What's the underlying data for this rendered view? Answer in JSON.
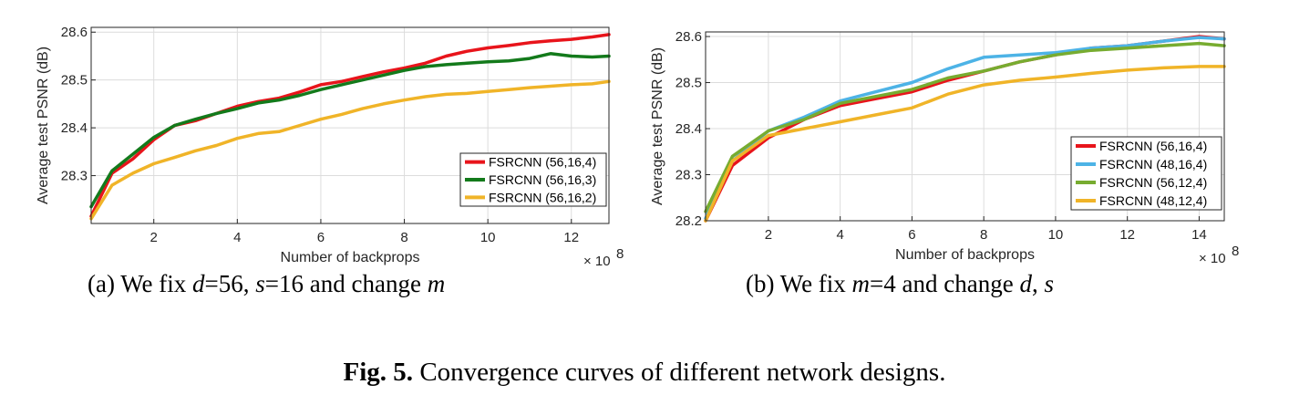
{
  "chart_data": [
    {
      "type": "line",
      "xlabel": "Number of backprops",
      "ylabel": "Average test PSNR (dB)",
      "x_multiplier_label": "× 10",
      "x_multiplier_exp": "8",
      "xlim": [
        0.5,
        12.9
      ],
      "ylim": [
        28.2,
        28.61
      ],
      "xticks": [
        2,
        4,
        6,
        8,
        10,
        12
      ],
      "yticks": [
        28.3,
        28.4,
        28.5,
        28.6
      ],
      "grid": true,
      "legend_position": "bottom-right",
      "series": [
        {
          "name": "FSRCNN (56,16,4)",
          "color": "#e8141b",
          "x": [
            0.5,
            1,
            1.5,
            2,
            2.5,
            3,
            3.5,
            4,
            4.5,
            5,
            5.5,
            6,
            6.5,
            7,
            7.5,
            8,
            8.5,
            9,
            9.5,
            10,
            10.5,
            11,
            11.5,
            12,
            12.5,
            12.9
          ],
          "y": [
            28.215,
            28.305,
            28.335,
            28.375,
            28.405,
            28.415,
            28.43,
            28.445,
            28.455,
            28.462,
            28.475,
            28.49,
            28.497,
            28.507,
            28.517,
            28.525,
            28.535,
            28.55,
            28.56,
            28.567,
            28.572,
            28.578,
            28.582,
            28.585,
            28.59,
            28.595
          ]
        },
        {
          "name": "FSRCNN (56,16,3)",
          "color": "#137a1b",
          "x": [
            0.5,
            1,
            1.5,
            2,
            2.5,
            3,
            3.5,
            4,
            4.5,
            5,
            5.5,
            6,
            6.5,
            7,
            7.5,
            8,
            8.5,
            9,
            9.5,
            10,
            10.5,
            11,
            11.5,
            12,
            12.5,
            12.9
          ],
          "y": [
            28.235,
            28.31,
            28.345,
            28.38,
            28.405,
            28.418,
            28.43,
            28.44,
            28.452,
            28.458,
            28.468,
            28.48,
            28.49,
            28.5,
            28.51,
            28.52,
            28.528,
            28.532,
            28.535,
            28.538,
            28.54,
            28.545,
            28.555,
            28.55,
            28.548,
            28.55
          ]
        },
        {
          "name": "FSRCNN (56,16,2)",
          "color": "#f0b428",
          "x": [
            0.5,
            1,
            1.5,
            2,
            2.5,
            3,
            3.5,
            4,
            4.5,
            5,
            5.5,
            6,
            6.5,
            7,
            7.5,
            8,
            8.5,
            9,
            9.5,
            10,
            10.5,
            11,
            11.5,
            12,
            12.5,
            12.9
          ],
          "y": [
            28.21,
            28.28,
            28.305,
            28.325,
            28.338,
            28.352,
            28.363,
            28.378,
            28.388,
            28.392,
            28.405,
            28.418,
            28.428,
            28.44,
            28.45,
            28.458,
            28.465,
            28.47,
            28.472,
            28.476,
            28.48,
            28.484,
            28.487,
            28.49,
            28.492,
            28.497
          ]
        }
      ]
    },
    {
      "type": "line",
      "xlabel": "Number of backprops",
      "ylabel": "Average test PSNR (dB)",
      "x_multiplier_label": "× 10",
      "x_multiplier_exp": "8",
      "xlim": [
        0.25,
        14.7
      ],
      "ylim": [
        28.2,
        28.61
      ],
      "xticks": [
        2,
        4,
        6,
        8,
        10,
        12,
        14
      ],
      "yticks": [
        28.2,
        28.3,
        28.4,
        28.5,
        28.6
      ],
      "grid": true,
      "legend_position": "bottom-right",
      "series": [
        {
          "name": "FSRCNN (56,16,4)",
          "color": "#e8141b",
          "x": [
            0.25,
            1,
            2,
            3,
            4,
            5,
            6,
            7,
            8,
            9,
            10,
            11,
            12,
            13,
            14,
            14.7
          ],
          "y": [
            28.2,
            28.32,
            28.38,
            28.42,
            28.45,
            28.465,
            28.48,
            28.505,
            28.525,
            28.545,
            28.56,
            28.575,
            28.58,
            28.59,
            28.6,
            28.595
          ]
        },
        {
          "name": "FSRCNN (48,16,4)",
          "color": "#4db3e6",
          "x": [
            0.25,
            1,
            2,
            3,
            4,
            5,
            6,
            7,
            8,
            9,
            10,
            11,
            12,
            13,
            14,
            14.7
          ],
          "y": [
            28.205,
            28.33,
            28.395,
            28.425,
            28.46,
            28.48,
            28.5,
            28.53,
            28.555,
            28.56,
            28.565,
            28.575,
            28.58,
            28.59,
            28.598,
            28.595
          ]
        },
        {
          "name": "FSRCNN (56,12,4)",
          "color": "#77ac30",
          "x": [
            0.25,
            1,
            2,
            3,
            4,
            5,
            6,
            7,
            8,
            9,
            10,
            11,
            12,
            13,
            14,
            14.7
          ],
          "y": [
            28.22,
            28.34,
            28.395,
            28.42,
            28.455,
            28.47,
            28.485,
            28.51,
            28.525,
            28.545,
            28.56,
            28.57,
            28.575,
            28.58,
            28.585,
            28.58
          ]
        },
        {
          "name": "FSRCNN (48,12,4)",
          "color": "#f0b428",
          "x": [
            0.25,
            1,
            2,
            3,
            4,
            5,
            6,
            7,
            8,
            9,
            10,
            11,
            12,
            13,
            14,
            14.7
          ],
          "y": [
            28.2,
            28.33,
            28.385,
            28.4,
            28.415,
            28.43,
            28.445,
            28.475,
            28.495,
            28.505,
            28.512,
            28.52,
            28.527,
            28.532,
            28.535,
            28.535
          ]
        }
      ]
    }
  ],
  "captions": {
    "a": {
      "prefix": "(a) We fix ",
      "v1": "d",
      "t1": "=56, ",
      "v2": "s",
      "t2": "=16 and change ",
      "v3": "m",
      "t3": ""
    },
    "b": {
      "prefix": "(b) We fix ",
      "v1": "m",
      "t1": "=4 and change ",
      "v2": "d",
      "t2": ", ",
      "v3": "s",
      "t3": ""
    },
    "figure": {
      "label": "Fig. 5.",
      "text": " Convergence curves of different network designs."
    }
  }
}
